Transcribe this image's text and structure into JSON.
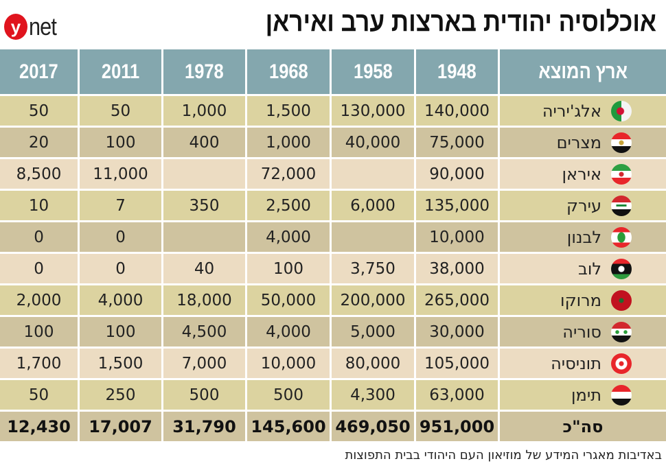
{
  "logo": "ynet",
  "title": "אוכלוסיה יהודית בארצות ערב ואיראן",
  "source": "באדיבות מאגרי המידע של מוזיאון העם היהודי בבית התפוצות",
  "colors": {
    "header": "#84a7ae",
    "row_a": "#dcd3a0",
    "row_b": "#cfc39f",
    "row_c": "#ecdcc2",
    "logo": "#e0141e"
  },
  "chart_data": {
    "type": "table",
    "title": "אוכלוסיה יהודית בארצות ערב ואיראן",
    "columns": [
      "ארץ המוצא",
      "1948",
      "1958",
      "1968",
      "1978",
      "2011",
      "2017"
    ],
    "rows": [
      {
        "country": "אלג'יריה",
        "flag": "algeria-flag-icon",
        "values": [
          "140,000",
          "130,000",
          "1,500",
          "1,000",
          "50",
          "50"
        ]
      },
      {
        "country": "מצרים",
        "flag": "egypt-flag-icon",
        "values": [
          "75,000",
          "40,000",
          "1,000",
          "400",
          "100",
          "20"
        ]
      },
      {
        "country": "איראן",
        "flag": "iran-flag-icon",
        "values": [
          "90,000",
          "",
          "72,000",
          "",
          "11,000",
          "8,500"
        ]
      },
      {
        "country": "עירק",
        "flag": "iraq-flag-icon",
        "values": [
          "135,000",
          "6,000",
          "2,500",
          "350",
          "7",
          "10"
        ]
      },
      {
        "country": "לבנון",
        "flag": "lebanon-flag-icon",
        "values": [
          "10,000",
          "",
          "4,000",
          "",
          "0",
          "0"
        ]
      },
      {
        "country": "לוב",
        "flag": "libya-flag-icon",
        "values": [
          "38,000",
          "3,750",
          "100",
          "40",
          "0",
          "0"
        ]
      },
      {
        "country": "מרוקו",
        "flag": "morocco-flag-icon",
        "values": [
          "265,000",
          "200,000",
          "50,000",
          "18,000",
          "4,000",
          "2,000"
        ]
      },
      {
        "country": "סוריה",
        "flag": "syria-flag-icon",
        "values": [
          "30,000",
          "5,000",
          "4,000",
          "4,500",
          "100",
          "100"
        ]
      },
      {
        "country": "תוניסיה",
        "flag": "tunisia-flag-icon",
        "values": [
          "105,000",
          "80,000",
          "10,000",
          "7,000",
          "1,500",
          "1,700"
        ]
      },
      {
        "country": "תימן",
        "flag": "yemen-flag-icon",
        "values": [
          "63,000",
          "4,300",
          "500",
          "500",
          "250",
          "50"
        ]
      }
    ],
    "total": {
      "label": "סה\"כ",
      "values": [
        "951,000",
        "469,050",
        "145,600",
        "31,790",
        "17,007",
        "12,430"
      ]
    }
  }
}
